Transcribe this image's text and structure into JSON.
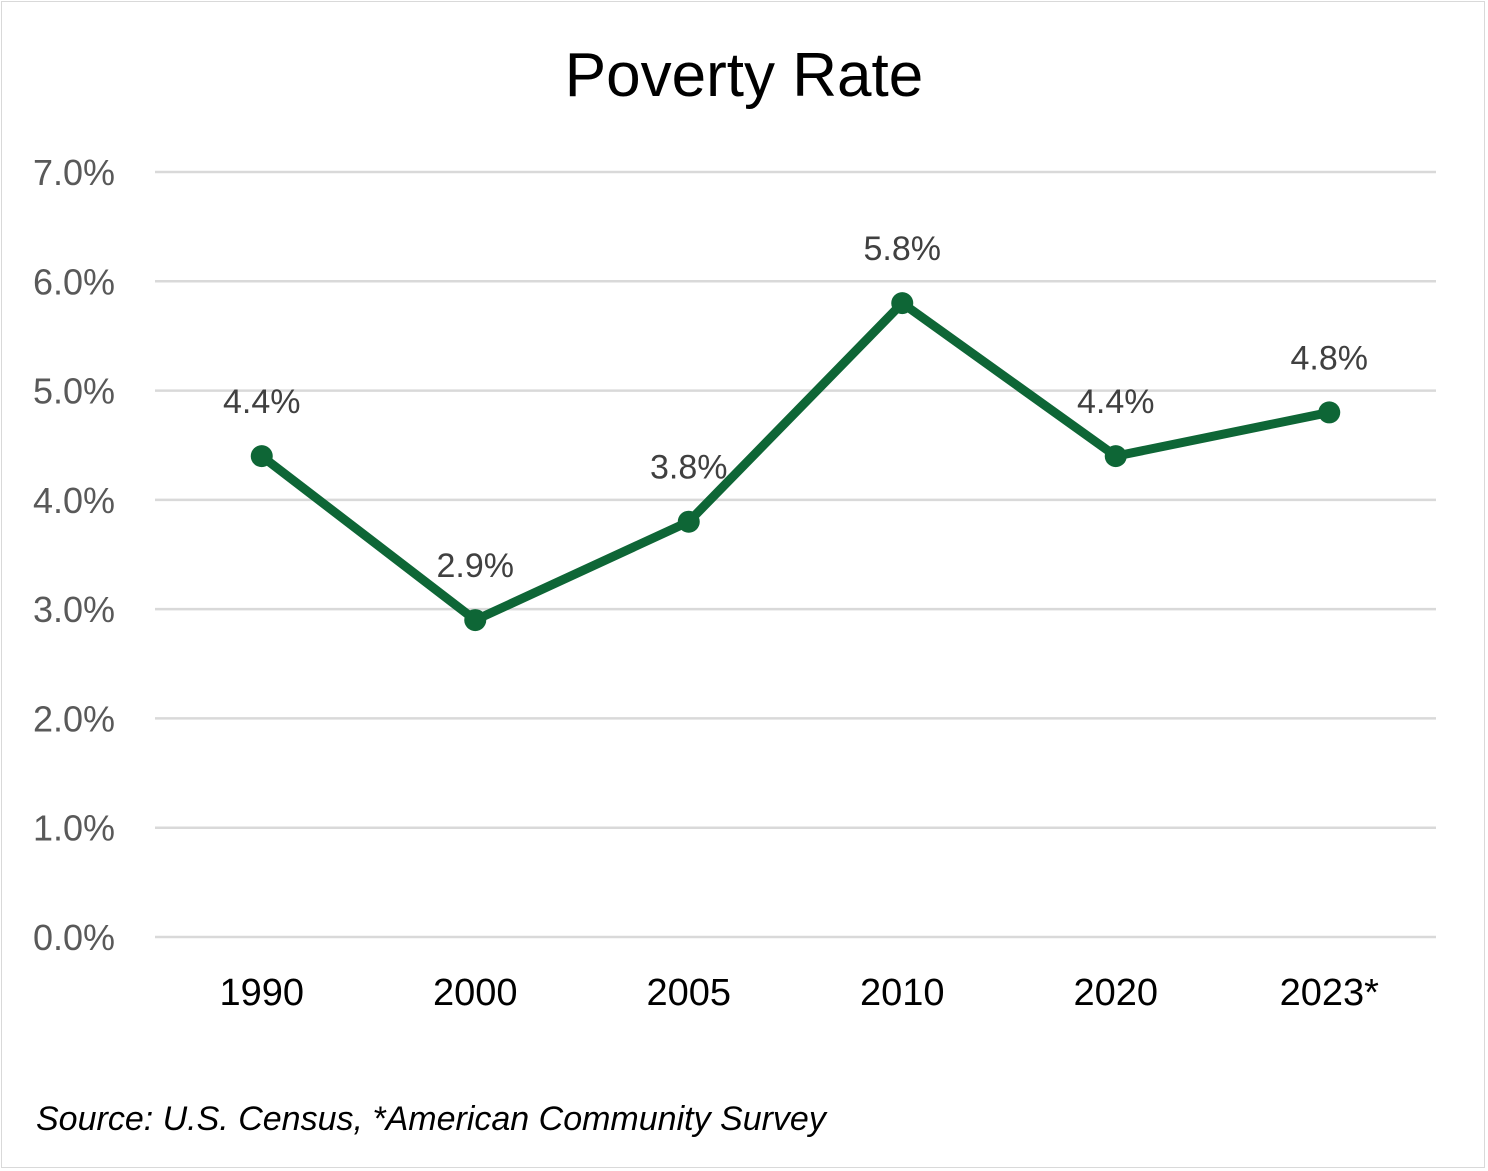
{
  "chart_data": {
    "type": "line",
    "title": "Poverty Rate",
    "categories": [
      "1990",
      "2000",
      "2005",
      "2010",
      "2020",
      "2023*"
    ],
    "series": [
      {
        "values": [
          4.4,
          2.9,
          3.8,
          5.8,
          4.4,
          4.8
        ],
        "data_labels": [
          "4.4%",
          "2.9%",
          "3.8%",
          "5.8%",
          "4.4%",
          "4.8%"
        ],
        "color": "#0e6636"
      }
    ],
    "ylim": [
      0,
      7
    ],
    "yticks": [
      "0.0%",
      "1.0%",
      "2.0%",
      "3.0%",
      "4.0%",
      "5.0%",
      "6.0%",
      "7.0%"
    ],
    "grid": true,
    "legend": "none",
    "xlabel": "",
    "ylabel": ""
  },
  "source_note": "Source: U.S. Census, *American Community Survey"
}
